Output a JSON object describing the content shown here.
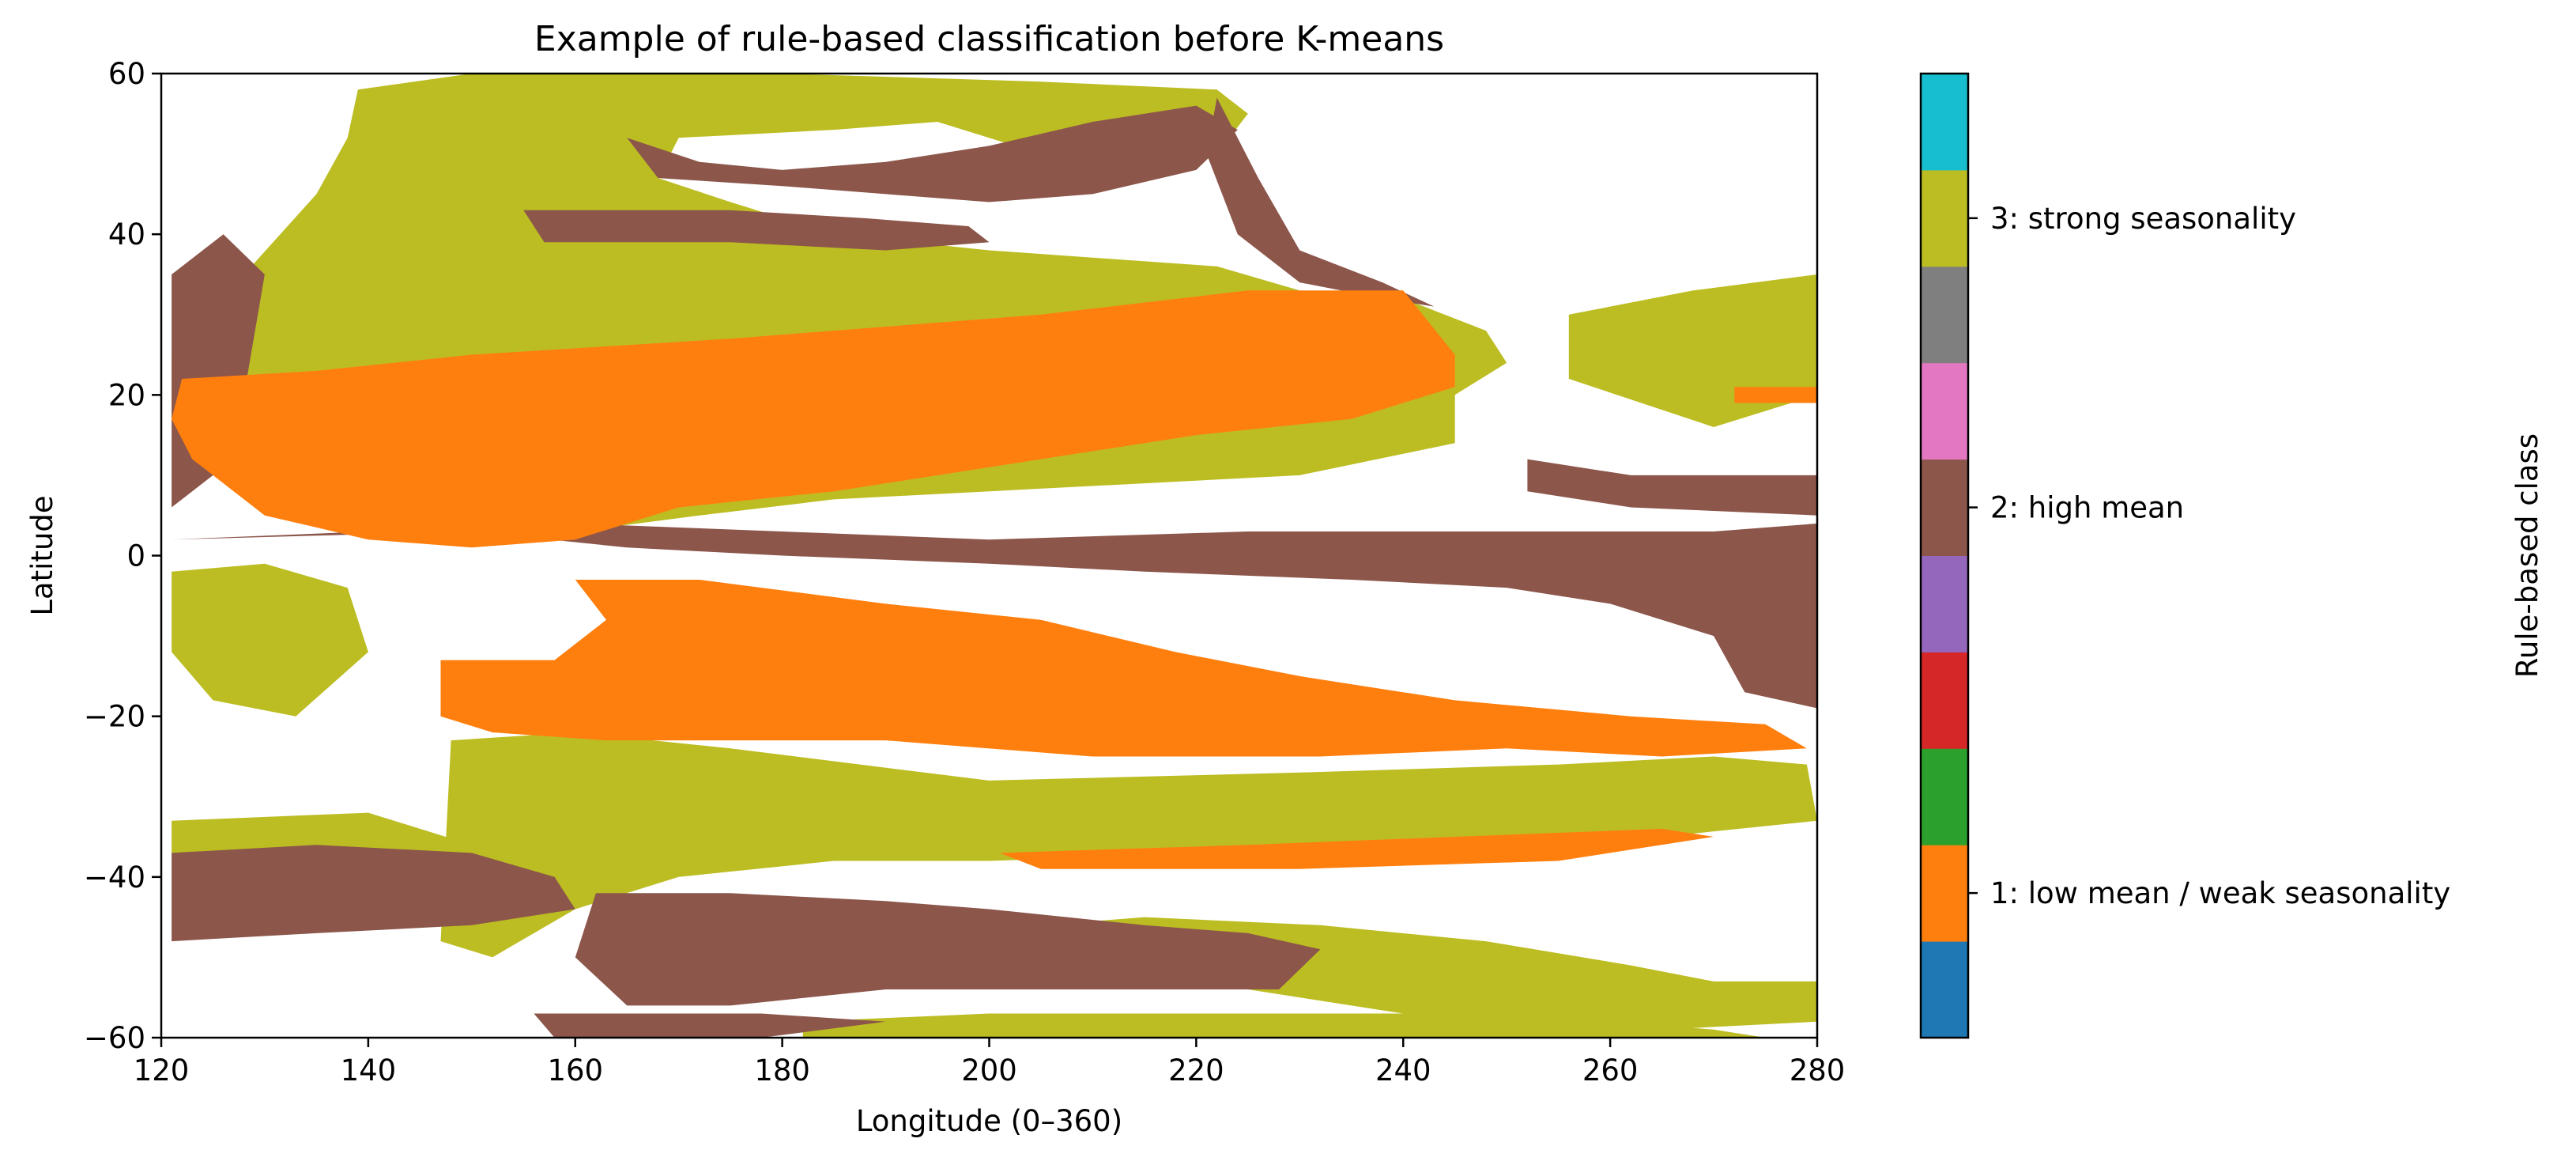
{
  "chart_data": {
    "type": "heatmap",
    "title": "Example of rule-based classification before K-means",
    "xlabel": "Longitude (0–360)",
    "ylabel": "Latitude",
    "xlim": [
      120,
      280
    ],
    "ylim": [
      -60,
      60
    ],
    "xticks": [
      120,
      140,
      160,
      180,
      200,
      220,
      240,
      260,
      280
    ],
    "yticks": [
      -60,
      -40,
      -20,
      0,
      20,
      40,
      60
    ],
    "grid": false,
    "colors": {
      "1": "#ff7f0e",
      "2": "#8c564b",
      "3": "#bcbd22"
    },
    "regions": [
      {
        "class": 3,
        "polygon": [
          [
            139,
            58
          ],
          [
            150,
            60
          ],
          [
            180,
            60
          ],
          [
            205,
            59
          ],
          [
            222,
            58
          ],
          [
            225,
            55
          ],
          [
            222,
            50
          ],
          [
            215,
            47
          ],
          [
            205,
            50
          ],
          [
            195,
            54
          ],
          [
            185,
            53
          ],
          [
            170,
            52
          ],
          [
            168,
            47
          ],
          [
            175,
            44
          ],
          [
            185,
            40
          ],
          [
            200,
            38
          ],
          [
            222,
            36
          ],
          [
            230,
            33
          ],
          [
            240,
            32
          ],
          [
            248,
            28
          ],
          [
            250,
            24
          ],
          [
            245,
            20
          ],
          [
            245,
            14
          ],
          [
            230,
            10
          ],
          [
            215,
            9
          ],
          [
            200,
            8
          ],
          [
            185,
            7
          ],
          [
            172,
            5
          ],
          [
            160,
            3
          ],
          [
            145,
            4
          ],
          [
            130,
            9
          ],
          [
            121,
            17
          ],
          [
            121,
            25
          ],
          [
            128,
            35
          ],
          [
            135,
            45
          ],
          [
            138,
            52
          ]
        ]
      },
      {
        "class": 3,
        "polygon": [
          [
            256,
            30
          ],
          [
            268,
            33
          ],
          [
            280,
            35
          ],
          [
            280,
            20
          ],
          [
            270,
            16
          ],
          [
            256,
            22
          ]
        ]
      },
      {
        "class": 3,
        "polygon": [
          [
            121,
            -2
          ],
          [
            130,
            -1
          ],
          [
            138,
            -4
          ],
          [
            140,
            -12
          ],
          [
            133,
            -20
          ],
          [
            125,
            -18
          ],
          [
            121,
            -12
          ]
        ]
      },
      {
        "class": 3,
        "polygon": [
          [
            148,
            -23
          ],
          [
            160,
            -22
          ],
          [
            175,
            -24
          ],
          [
            200,
            -28
          ],
          [
            230,
            -27
          ],
          [
            255,
            -26
          ],
          [
            270,
            -25
          ],
          [
            279,
            -26
          ],
          [
            280,
            -33
          ],
          [
            265,
            -35
          ],
          [
            245,
            -36
          ],
          [
            225,
            -37
          ],
          [
            200,
            -38
          ],
          [
            185,
            -38
          ],
          [
            170,
            -40
          ],
          [
            160,
            -44
          ],
          [
            152,
            -50
          ],
          [
            147,
            -48
          ]
        ]
      },
      {
        "class": 3,
        "polygon": [
          [
            121,
            -33
          ],
          [
            140,
            -32
          ],
          [
            150,
            -36
          ],
          [
            148,
            -38
          ],
          [
            132,
            -38
          ],
          [
            121,
            -37
          ]
        ]
      },
      {
        "class": 3,
        "polygon": [
          [
            163,
            -44
          ],
          [
            190,
            -44
          ],
          [
            205,
            -46
          ],
          [
            215,
            -45
          ],
          [
            232,
            -46
          ],
          [
            248,
            -48
          ],
          [
            262,
            -51
          ],
          [
            270,
            -53
          ],
          [
            280,
            -53
          ],
          [
            280,
            -58
          ],
          [
            265,
            -59
          ],
          [
            245,
            -58
          ],
          [
            225,
            -54
          ],
          [
            208,
            -50
          ],
          [
            195,
            -48
          ],
          [
            178,
            -50
          ],
          [
            165,
            -50
          ]
        ]
      },
      {
        "class": 3,
        "polygon": [
          [
            182,
            -58
          ],
          [
            200,
            -57
          ],
          [
            225,
            -57
          ],
          [
            250,
            -57
          ],
          [
            270,
            -59
          ],
          [
            275,
            -60
          ],
          [
            182,
            -60
          ]
        ]
      },
      {
        "class": 2,
        "polygon": [
          [
            165,
            52
          ],
          [
            172,
            49
          ],
          [
            180,
            48
          ],
          [
            190,
            49
          ],
          [
            200,
            51
          ],
          [
            210,
            54
          ],
          [
            220,
            56
          ],
          [
            224,
            53
          ],
          [
            220,
            48
          ],
          [
            210,
            45
          ],
          [
            200,
            44
          ],
          [
            190,
            45
          ],
          [
            180,
            46
          ],
          [
            168,
            47
          ]
        ]
      },
      {
        "class": 2,
        "polygon": [
          [
            155,
            43
          ],
          [
            175,
            43
          ],
          [
            188,
            42
          ],
          [
            198,
            41
          ],
          [
            200,
            39
          ],
          [
            190,
            38
          ],
          [
            175,
            39
          ],
          [
            157,
            39
          ]
        ]
      },
      {
        "class": 2,
        "polygon": [
          [
            222,
            57
          ],
          [
            226,
            47
          ],
          [
            230,
            38
          ],
          [
            238,
            34
          ],
          [
            243,
            31
          ],
          [
            238,
            32
          ],
          [
            230,
            34
          ],
          [
            224,
            40
          ],
          [
            221,
            50
          ]
        ]
      },
      {
        "class": 2,
        "polygon": [
          [
            121,
            35
          ],
          [
            126,
            40
          ],
          [
            130,
            35
          ],
          [
            128,
            20
          ],
          [
            125,
            10
          ],
          [
            121,
            6
          ]
        ]
      },
      {
        "class": 2,
        "polygon": [
          [
            252,
            12
          ],
          [
            262,
            10
          ],
          [
            280,
            10
          ],
          [
            280,
            5
          ],
          [
            262,
            6
          ],
          [
            252,
            8
          ]
        ]
      },
      {
        "class": 2,
        "polygon": [
          [
            121,
            2
          ],
          [
            150,
            3
          ],
          [
            165,
            1
          ],
          [
            180,
            0
          ],
          [
            200,
            -1
          ],
          [
            215,
            -2
          ],
          [
            235,
            -3
          ],
          [
            250,
            -4
          ],
          [
            260,
            -6
          ],
          [
            270,
            -10
          ],
          [
            273,
            -17
          ],
          [
            280,
            -19
          ],
          [
            280,
            4
          ],
          [
            270,
            3
          ],
          [
            250,
            3
          ],
          [
            225,
            3
          ],
          [
            200,
            2
          ],
          [
            180,
            3
          ],
          [
            160,
            4
          ],
          [
            140,
            3
          ]
        ]
      },
      {
        "class": 2,
        "polygon": [
          [
            121,
            -37
          ],
          [
            135,
            -36
          ],
          [
            150,
            -37
          ],
          [
            158,
            -40
          ],
          [
            160,
            -44
          ],
          [
            150,
            -46
          ],
          [
            135,
            -47
          ],
          [
            121,
            -48
          ]
        ]
      },
      {
        "class": 2,
        "polygon": [
          [
            162,
            -42
          ],
          [
            175,
            -42
          ],
          [
            190,
            -43
          ],
          [
            200,
            -44
          ],
          [
            215,
            -46
          ],
          [
            225,
            -47
          ],
          [
            232,
            -49
          ],
          [
            228,
            -54
          ],
          [
            210,
            -54
          ],
          [
            190,
            -54
          ],
          [
            175,
            -56
          ],
          [
            165,
            -56
          ],
          [
            160,
            -50
          ]
        ]
      },
      {
        "class": 2,
        "polygon": [
          [
            156,
            -57
          ],
          [
            178,
            -57
          ],
          [
            190,
            -58
          ],
          [
            178,
            -60
          ],
          [
            158,
            -60
          ]
        ]
      },
      {
        "class": 1,
        "polygon": [
          [
            122,
            22
          ],
          [
            135,
            23
          ],
          [
            150,
            25
          ],
          [
            175,
            27
          ],
          [
            205,
            30
          ],
          [
            225,
            33
          ],
          [
            240,
            33
          ],
          [
            245,
            25
          ],
          [
            245,
            21
          ],
          [
            235,
            17
          ],
          [
            220,
            15
          ],
          [
            200,
            11
          ],
          [
            185,
            8
          ],
          [
            170,
            6
          ],
          [
            160,
            2
          ],
          [
            150,
            1
          ],
          [
            140,
            2
          ],
          [
            130,
            5
          ],
          [
            123,
            12
          ],
          [
            121,
            17
          ]
        ]
      },
      {
        "class": 1,
        "polygon": [
          [
            160,
            -3
          ],
          [
            172,
            -3
          ],
          [
            190,
            -6
          ],
          [
            205,
            -8
          ],
          [
            218,
            -12
          ],
          [
            230,
            -15
          ],
          [
            245,
            -18
          ],
          [
            262,
            -20
          ],
          [
            275,
            -21
          ],
          [
            279,
            -24
          ],
          [
            265,
            -25
          ],
          [
            250,
            -24
          ],
          [
            232,
            -25
          ],
          [
            210,
            -25
          ],
          [
            190,
            -23
          ],
          [
            176,
            -23
          ],
          [
            163,
            -23
          ],
          [
            152,
            -22
          ],
          [
            147,
            -20
          ],
          [
            147,
            -13
          ],
          [
            158,
            -13
          ],
          [
            163,
            -8
          ]
        ]
      },
      {
        "class": 1,
        "polygon": [
          [
            201,
            -37
          ],
          [
            225,
            -36
          ],
          [
            245,
            -35
          ],
          [
            265,
            -34
          ],
          [
            270,
            -35
          ],
          [
            255,
            -38
          ],
          [
            230,
            -39
          ],
          [
            205,
            -39
          ]
        ]
      },
      {
        "class": 1,
        "polygon": [
          [
            272,
            21
          ],
          [
            280,
            21
          ],
          [
            280,
            19
          ],
          [
            272,
            19
          ]
        ]
      }
    ],
    "colorbar": {
      "label": "Rule-based class",
      "range": [
        0,
        10
      ],
      "colors": [
        "#1f77b4",
        "#ff7f0e",
        "#2ca02c",
        "#d62728",
        "#9467bd",
        "#8c564b",
        "#e377c2",
        "#7f7f7f",
        "#bcbd22",
        "#17becf"
      ],
      "ticks": [
        {
          "value": 1.5,
          "label": "1: low mean / weak seasonality"
        },
        {
          "value": 5.5,
          "label": "2: high mean"
        },
        {
          "value": 8.5,
          "label": "3: strong seasonality"
        }
      ]
    }
  }
}
